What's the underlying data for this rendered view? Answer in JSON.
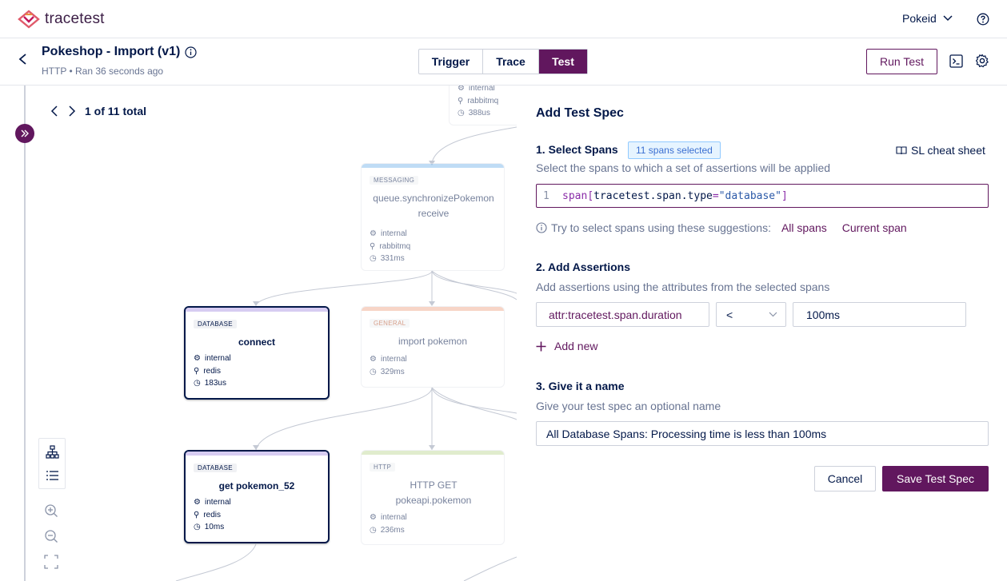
{
  "app": {
    "logo_text": "tracetest",
    "env_label": "Pokeid"
  },
  "header": {
    "title": "Pokeshop - Import (v1)",
    "trigger_type": "HTTP",
    "separator": "•",
    "ran_text": "Ran 36 seconds ago",
    "tabs": [
      {
        "label": "Trigger"
      },
      {
        "label": "Trace"
      },
      {
        "label": "Test",
        "active": true
      }
    ],
    "run_button": "Run Test"
  },
  "diagram": {
    "pager": "1 of 11 total",
    "nodes": [
      {
        "badge": "",
        "name": "",
        "attrs": [
          "internal",
          "rabbitmq",
          "388us"
        ]
      },
      {
        "badge": "MESSAGING",
        "name": "queue.synchronizePokemon receive",
        "attrs": [
          "internal",
          "rabbitmq",
          "331ms"
        ]
      },
      {
        "badge": "DATABASE",
        "name": "connect",
        "attrs": [
          "internal",
          "redis",
          "183us"
        ]
      },
      {
        "badge": "GENERAL",
        "name": "import pokemon",
        "attrs": [
          "internal",
          "329ms"
        ]
      },
      {
        "badge": "DATABASE",
        "name": "get pokemon_52",
        "attrs": [
          "internal",
          "redis",
          "10ms"
        ]
      },
      {
        "badge": "HTTP",
        "name": "HTTP GET pokeapi.pokemon",
        "attrs": [
          "internal",
          "236ms"
        ]
      }
    ],
    "colors": {
      "messaging": "#cfe3f7",
      "database": "#e2d8f5",
      "general": "#f7d9c8",
      "http": "#dde9c9"
    }
  },
  "panel": {
    "title": "Add Test Spec",
    "step1": {
      "label": "1. Select Spans",
      "badge": "11 spans selected",
      "cheat_sheet": "SL cheat sheet",
      "help": "Select the spans to which a set of assertions will be applied",
      "editor": {
        "line": "1",
        "selector": "span",
        "open": "[",
        "attribute": "tracetest.span.type",
        "eq": "=",
        "value": "\"database\"",
        "close": "]"
      },
      "suggestion_text": "Try to select spans using these suggestions:",
      "suggestions": [
        "All spans",
        "Current span"
      ]
    },
    "step2": {
      "label": "2. Add Assertions",
      "help": "Add assertions using the attributes from the selected spans",
      "attribute": "attr:tracetest.span.duration",
      "operator": "<",
      "value": "100ms",
      "add_new": "Add new"
    },
    "step3": {
      "label": "3. Give it a name",
      "help": "Give your test spec an optional name",
      "name_value": "All Database Spans: Processing time is less than 100ms"
    },
    "cancel": "Cancel",
    "save": "Save Test Spec"
  },
  "theme": {
    "accent": "#61175e",
    "text": "#031849",
    "muted": "#687492"
  }
}
